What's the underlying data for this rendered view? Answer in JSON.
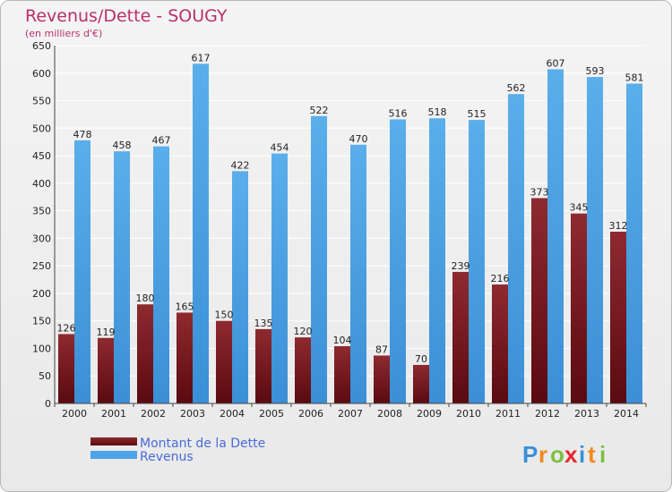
{
  "chart_data": {
    "type": "bar",
    "title": "Revenus/Dette - SOUGY",
    "subtitle": "(en milliers d'€)",
    "categories": [
      "2000",
      "2001",
      "2002",
      "2003",
      "2004",
      "2005",
      "2006",
      "2007",
      "2008",
      "2009",
      "2010",
      "2011",
      "2012",
      "2013",
      "2014"
    ],
    "series": [
      {
        "name": "Montant de la Dette",
        "color": "#7a1a22",
        "values": [
          126,
          119,
          180,
          165,
          150,
          135,
          120,
          104,
          87,
          70,
          239,
          216,
          373,
          345,
          312
        ]
      },
      {
        "name": "Revenus",
        "color": "#4ea3e6",
        "values": [
          478,
          458,
          467,
          617,
          422,
          454,
          522,
          470,
          516,
          518,
          515,
          562,
          607,
          593,
          581
        ]
      }
    ],
    "ylim": [
      0,
      650
    ],
    "yticks": [
      0,
      50,
      100,
      150,
      200,
      250,
      300,
      350,
      400,
      450,
      500,
      550,
      600,
      650
    ],
    "grid": true,
    "legend_position": "bottom-left"
  },
  "logo": {
    "text": "Proxiti"
  }
}
